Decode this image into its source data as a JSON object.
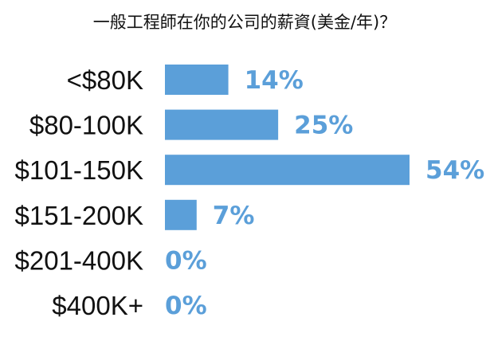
{
  "chart_data": {
    "type": "bar",
    "orientation": "horizontal",
    "title": "一般工程師在你的公司的薪資(美金/年)？",
    "xlabel": "",
    "ylabel": "",
    "categories": [
      "<$80K",
      "$80-100K",
      "$101-150K",
      "$151-200K",
      "$201-400K",
      "$400K+"
    ],
    "values": [
      14,
      25,
      54,
      7,
      0,
      0
    ],
    "value_labels": [
      "14%",
      "25%",
      "54%",
      "7%",
      "0%",
      "0%"
    ],
    "unit": "%",
    "xlim": [
      0,
      54
    ],
    "grid": false,
    "legend": "none",
    "bar_color": "#5b9fd9",
    "label_color": "#5b9fd9",
    "text_color": "#111111"
  }
}
